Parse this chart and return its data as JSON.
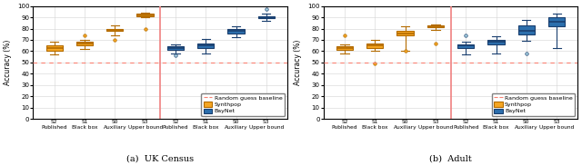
{
  "title_a": "(a)  UK Census",
  "title_b": "(b)  Adult",
  "ylabel": "Accuracy (%)",
  "ylim": [
    0,
    100
  ],
  "yticks": [
    0,
    10,
    20,
    30,
    40,
    50,
    60,
    70,
    80,
    90,
    100
  ],
  "random_guess": 50,
  "vline_color": "#f08080",
  "synthpop_color": "#f5a623",
  "synthpop_edge": "#b36b00",
  "baynet_color": "#2c6fad",
  "baynet_edge": "#1a3f6f",
  "tick_labels": [
    "S2\nPublished",
    "S1\nBlack box",
    "S0\nAuxiliary",
    "S3\nUpper bound",
    "S2\nPublished",
    "S1\nBlack box",
    "S0\nAuxiliary",
    "S3\nUpper bound"
  ],
  "uk_synthpop": [
    {
      "med": 63,
      "q1": 60,
      "q3": 65,
      "whislo": 57,
      "whishi": 68,
      "fliers": []
    },
    {
      "med": 67,
      "q1": 65,
      "q3": 68,
      "whislo": 62,
      "whishi": 70,
      "fliers": [
        74
      ]
    },
    {
      "med": 79,
      "q1": 78,
      "q3": 80,
      "whislo": 74,
      "whishi": 83,
      "fliers": [
        70
      ]
    },
    {
      "med": 92,
      "q1": 91,
      "q3": 93,
      "whislo": 90,
      "whishi": 94,
      "fliers": [
        80
      ]
    }
  ],
  "uk_baynet": [
    {
      "med": 63,
      "q1": 61,
      "q3": 64,
      "whislo": 58,
      "whishi": 66,
      "fliers": [
        56
      ]
    },
    {
      "med": 65,
      "q1": 63,
      "q3": 67,
      "whislo": 58,
      "whishi": 71,
      "fliers": []
    },
    {
      "med": 78,
      "q1": 76,
      "q3": 80,
      "whislo": 72,
      "whishi": 82,
      "fliers": []
    },
    {
      "med": 90,
      "q1": 89,
      "q3": 91,
      "whislo": 87,
      "whishi": 93,
      "fliers": [
        97
      ]
    }
  ],
  "adult_synthpop": [
    {
      "med": 63,
      "q1": 61,
      "q3": 64,
      "whislo": 58,
      "whishi": 66,
      "fliers": [
        74
      ]
    },
    {
      "med": 65,
      "q1": 63,
      "q3": 67,
      "whislo": 60,
      "whishi": 70,
      "fliers": [
        49
      ]
    },
    {
      "med": 76,
      "q1": 74,
      "q3": 78,
      "whislo": 60,
      "whishi": 82,
      "fliers": [
        60
      ]
    },
    {
      "med": 82,
      "q1": 81,
      "q3": 83,
      "whislo": 79,
      "whishi": 84,
      "fliers": [
        67
      ]
    }
  ],
  "adult_baynet": [
    {
      "med": 65,
      "q1": 63,
      "q3": 66,
      "whislo": 57,
      "whishi": 68,
      "fliers": [
        74
      ]
    },
    {
      "med": 68,
      "q1": 66,
      "q3": 70,
      "whislo": 58,
      "whishi": 73,
      "fliers": []
    },
    {
      "med": 78,
      "q1": 75,
      "q3": 83,
      "whislo": 69,
      "whishi": 88,
      "fliers": [
        58
      ]
    },
    {
      "med": 86,
      "q1": 82,
      "q3": 90,
      "whislo": 63,
      "whishi": 93,
      "fliers": []
    }
  ]
}
